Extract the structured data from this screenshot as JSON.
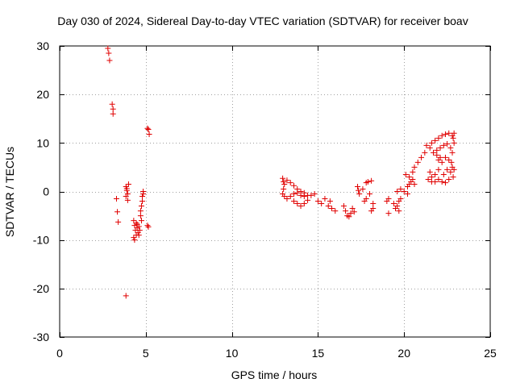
{
  "chart_data": {
    "type": "scatter",
    "title": "Day 030 of 2024, Sidereal Day-to-day VTEC variation (SDTVAR) for receiver boav",
    "xlabel": "GPS time / hours",
    "ylabel": "SDTVAR / TECUs",
    "xlim": [
      0,
      25
    ],
    "ylim": [
      -30,
      30
    ],
    "xticks": [
      0,
      5,
      10,
      15,
      20,
      25
    ],
    "yticks": [
      -30,
      -20,
      -10,
      0,
      10,
      20,
      30
    ],
    "xtick_labels": [
      "0",
      "5",
      "10",
      "15",
      "20",
      "25"
    ],
    "ytick_labels": [
      "-30",
      "-20",
      "-10",
      "0",
      "10",
      "20",
      "30"
    ],
    "grid": true,
    "marker": "+",
    "color": "#e00000",
    "series": [
      {
        "name": "SDTVAR",
        "points": [
          [
            2.8,
            29.5
          ],
          [
            2.85,
            28.5
          ],
          [
            2.9,
            27.0
          ],
          [
            3.05,
            18.0
          ],
          [
            3.1,
            17.0
          ],
          [
            3.1,
            16.0
          ],
          [
            3.3,
            -1.5
          ],
          [
            3.35,
            -4.2
          ],
          [
            3.4,
            -6.3
          ],
          [
            3.85,
            1.0
          ],
          [
            3.9,
            0.2
          ],
          [
            3.95,
            -0.5
          ],
          [
            3.85,
            -1.0
          ],
          [
            3.95,
            -1.8
          ],
          [
            4.0,
            1.5
          ],
          [
            3.9,
            0.6
          ],
          [
            3.85,
            -21.5
          ],
          [
            4.3,
            -6.0
          ],
          [
            4.35,
            -7.0
          ],
          [
            4.4,
            -8.0
          ],
          [
            4.45,
            -9.0
          ],
          [
            4.35,
            -10.0
          ],
          [
            4.3,
            -9.5
          ],
          [
            4.45,
            -6.5
          ],
          [
            4.5,
            -7.5
          ],
          [
            4.55,
            -8.5
          ],
          [
            4.6,
            -9.0
          ],
          [
            4.5,
            -6.8
          ],
          [
            4.6,
            -7.2
          ],
          [
            4.65,
            -8.0
          ],
          [
            4.7,
            -4.0
          ],
          [
            4.7,
            -5.0
          ],
          [
            4.75,
            -6.0
          ],
          [
            4.75,
            -3.0
          ],
          [
            4.8,
            -2.0
          ],
          [
            4.8,
            -1.0
          ],
          [
            4.85,
            0.0
          ],
          [
            4.85,
            -0.5
          ],
          [
            5.1,
            13.0
          ],
          [
            5.15,
            12.8
          ],
          [
            5.2,
            11.8
          ],
          [
            5.1,
            -7.0
          ],
          [
            5.15,
            -7.3
          ],
          [
            12.95,
            2.7
          ],
          [
            13.0,
            2.0
          ],
          [
            13.05,
            1.5
          ],
          [
            13.0,
            0.5
          ],
          [
            12.95,
            -0.5
          ],
          [
            13.05,
            -1.0
          ],
          [
            13.2,
            2.3
          ],
          [
            13.4,
            1.8
          ],
          [
            13.6,
            1.2
          ],
          [
            13.8,
            0.5
          ],
          [
            14.0,
            0.0
          ],
          [
            14.2,
            -0.3
          ],
          [
            14.4,
            -0.8
          ],
          [
            13.2,
            -1.5
          ],
          [
            13.4,
            -1.0
          ],
          [
            13.6,
            -0.5
          ],
          [
            13.8,
            -0.3
          ],
          [
            14.0,
            -0.8
          ],
          [
            14.2,
            -1.0
          ],
          [
            13.6,
            -2.0
          ],
          [
            13.8,
            -2.5
          ],
          [
            14.0,
            -3.0
          ],
          [
            14.2,
            -2.5
          ],
          [
            14.4,
            -1.8
          ],
          [
            14.6,
            -0.8
          ],
          [
            14.8,
            -0.5
          ],
          [
            15.0,
            -2.0
          ],
          [
            15.2,
            -2.5
          ],
          [
            15.4,
            -1.5
          ],
          [
            15.6,
            -3.0
          ],
          [
            15.8,
            -3.5
          ],
          [
            16.0,
            -4.0
          ],
          [
            15.7,
            -2.0
          ],
          [
            16.5,
            -3.0
          ],
          [
            16.6,
            -4.0
          ],
          [
            16.7,
            -5.0
          ],
          [
            16.9,
            -4.5
          ],
          [
            17.0,
            -3.5
          ],
          [
            17.1,
            -4.2
          ],
          [
            16.8,
            -5.2
          ],
          [
            17.3,
            1.0
          ],
          [
            17.35,
            0.2
          ],
          [
            17.4,
            -0.5
          ],
          [
            17.6,
            0.5
          ],
          [
            17.8,
            1.8
          ],
          [
            17.9,
            2.0
          ],
          [
            18.1,
            2.2
          ],
          [
            17.7,
            -2.0
          ],
          [
            17.8,
            -1.5
          ],
          [
            18.0,
            -0.5
          ],
          [
            18.2,
            -2.5
          ],
          [
            18.1,
            -4.0
          ],
          [
            18.2,
            -3.5
          ],
          [
            19.0,
            -2.0
          ],
          [
            19.1,
            -1.5
          ],
          [
            19.1,
            -4.5
          ],
          [
            19.4,
            -2.5
          ],
          [
            19.5,
            -3.5
          ],
          [
            19.6,
            -3.0
          ],
          [
            19.7,
            -2.0
          ],
          [
            19.8,
            -1.5
          ],
          [
            19.6,
            0.0
          ],
          [
            19.8,
            0.5
          ],
          [
            19.7,
            -4.0
          ],
          [
            20.0,
            0.0
          ],
          [
            20.2,
            1.0
          ],
          [
            20.3,
            1.5
          ],
          [
            20.4,
            2.0
          ],
          [
            20.5,
            2.5
          ],
          [
            20.6,
            1.5
          ],
          [
            20.2,
            -0.5
          ],
          [
            20.1,
            3.5
          ],
          [
            20.3,
            3.0
          ],
          [
            20.5,
            4.0
          ],
          [
            20.6,
            5.0
          ],
          [
            20.8,
            6.0
          ],
          [
            21.0,
            7.0
          ],
          [
            21.2,
            8.0
          ],
          [
            21.3,
            9.5
          ],
          [
            21.5,
            9.0
          ],
          [
            21.6,
            10.0
          ],
          [
            21.8,
            10.5
          ],
          [
            22.0,
            11.0
          ],
          [
            22.2,
            11.5
          ],
          [
            22.4,
            11.8
          ],
          [
            22.6,
            12.0
          ],
          [
            22.8,
            11.5
          ],
          [
            22.9,
            12.0
          ],
          [
            21.7,
            8.0
          ],
          [
            21.9,
            8.5
          ],
          [
            22.1,
            9.0
          ],
          [
            22.3,
            9.5
          ],
          [
            22.5,
            9.8
          ],
          [
            22.7,
            9.0
          ],
          [
            22.8,
            8.0
          ],
          [
            21.5,
            4.0
          ],
          [
            21.6,
            3.0
          ],
          [
            21.8,
            3.5
          ],
          [
            22.0,
            4.5
          ],
          [
            22.2,
            6.0
          ],
          [
            22.4,
            7.0
          ],
          [
            22.6,
            6.5
          ],
          [
            21.4,
            2.5
          ],
          [
            21.6,
            2.0
          ],
          [
            21.8,
            2.0
          ],
          [
            22.0,
            2.5
          ],
          [
            22.2,
            2.0
          ],
          [
            22.4,
            1.8
          ],
          [
            22.6,
            2.5
          ],
          [
            22.7,
            4.0
          ],
          [
            22.8,
            5.0
          ],
          [
            22.85,
            3.0
          ],
          [
            22.9,
            4.5
          ],
          [
            22.75,
            6.0
          ],
          [
            22.9,
            10.0
          ],
          [
            22.85,
            11.0
          ],
          [
            22.3,
            3.5
          ],
          [
            22.5,
            4.5
          ],
          [
            22.0,
            6.5
          ],
          [
            21.9,
            7.5
          ],
          [
            22.1,
            7.0
          ]
        ]
      }
    ]
  }
}
